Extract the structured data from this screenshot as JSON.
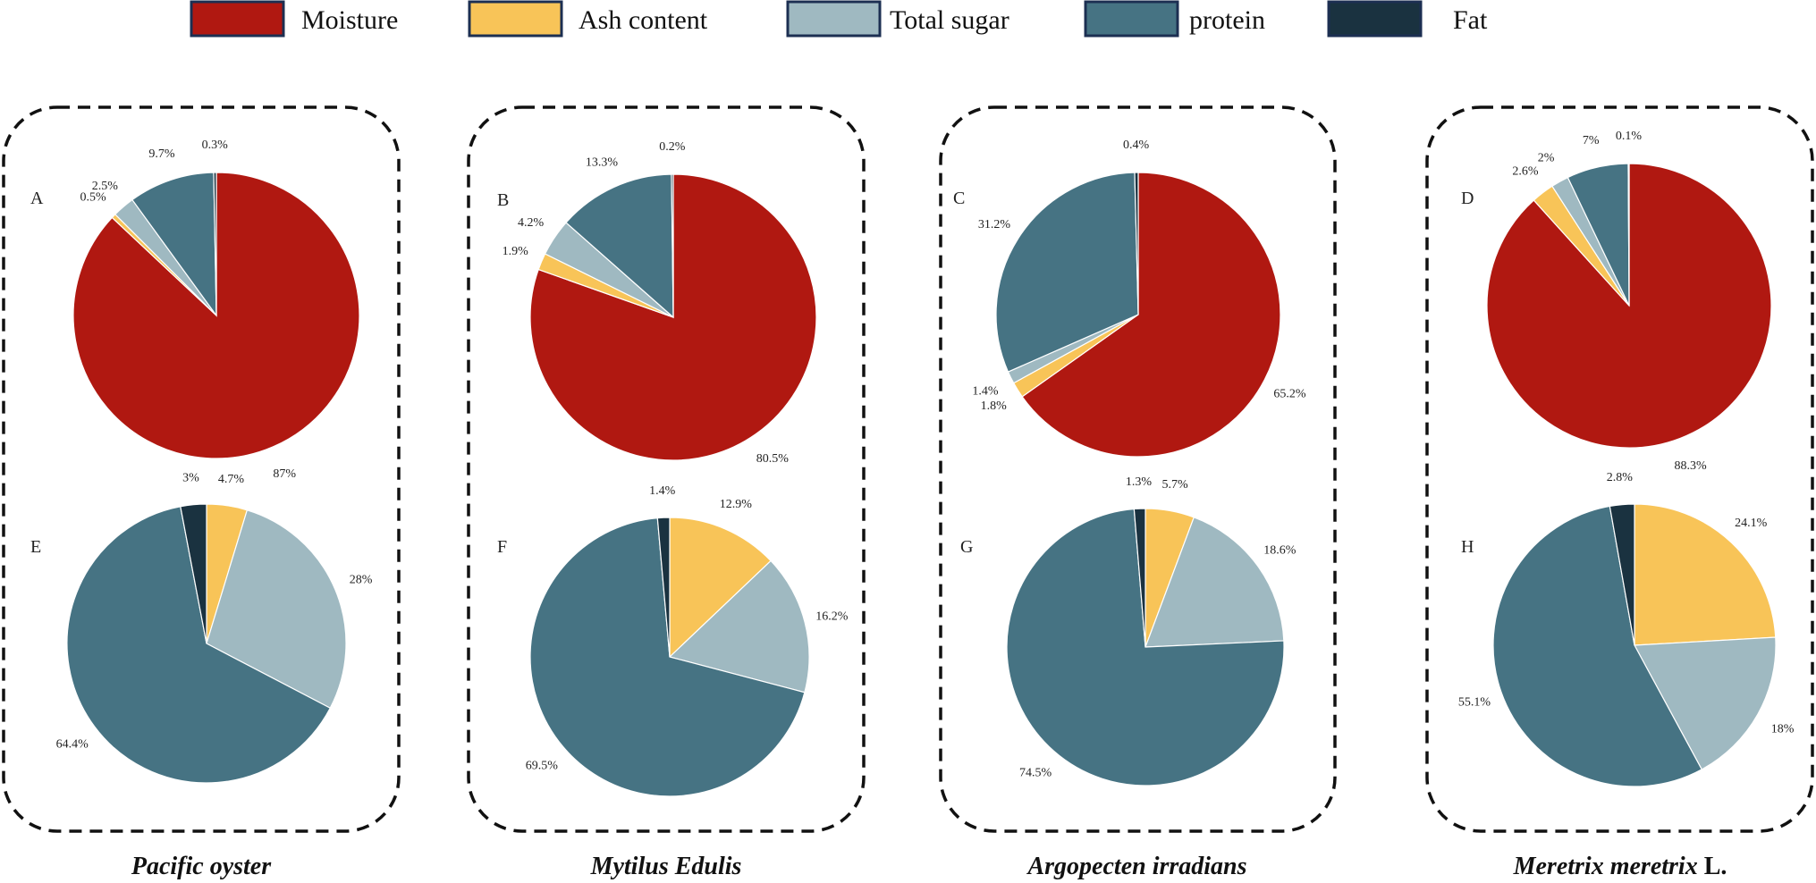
{
  "chart_data": [
    {
      "type": "pie",
      "panel": "A",
      "group": "Pacific oyster",
      "categories": [
        "Moisture",
        "Ash content",
        "Total sugar",
        "protein",
        "Fat"
      ],
      "values": [
        87,
        0.5,
        2.5,
        9.7,
        0.3
      ],
      "labels": [
        "87%",
        "0.5%",
        "2.5%",
        "9.7%",
        "0.3%"
      ]
    },
    {
      "type": "pie",
      "panel": "B",
      "group": "Mytilus Edulis",
      "categories": [
        "Moisture",
        "Ash content",
        "Total sugar",
        "protein",
        "Fat"
      ],
      "values": [
        80.5,
        1.9,
        4.2,
        13.3,
        0.2
      ],
      "labels": [
        "80.5%",
        "1.9%",
        "4.2%",
        "13.3%",
        "0.2%"
      ]
    },
    {
      "type": "pie",
      "panel": "C",
      "group": "Argopecten irradians",
      "categories": [
        "Moisture",
        "Ash content",
        "Total sugar",
        "protein",
        "Fat"
      ],
      "values": [
        65.2,
        1.8,
        1.4,
        31.2,
        0.4
      ],
      "labels": [
        "65.2%",
        "1.8%",
        "1.4%",
        "31.2%",
        "0.4%"
      ]
    },
    {
      "type": "pie",
      "panel": "D",
      "group": "Meretrix meretrix L.",
      "categories": [
        "Moisture",
        "Ash content",
        "Total sugar",
        "protein",
        "Fat"
      ],
      "values": [
        88.3,
        2.6,
        2,
        7,
        0.1
      ],
      "labels": [
        "88.3%",
        "2.6%",
        "2%",
        "7%",
        "0.1%"
      ]
    },
    {
      "type": "pie",
      "panel": "E",
      "group": "Pacific oyster",
      "categories": [
        "Ash content",
        "Total sugar",
        "protein",
        "Fat"
      ],
      "values": [
        4.7,
        28,
        64.4,
        3
      ],
      "labels": [
        "4.7%",
        "28%",
        "64.4%",
        "3%"
      ]
    },
    {
      "type": "pie",
      "panel": "F",
      "group": "Mytilus Edulis",
      "categories": [
        "Ash content",
        "Total sugar",
        "protein",
        "Fat"
      ],
      "values": [
        12.9,
        16.2,
        69.5,
        1.4
      ],
      "labels": [
        "12.9%",
        "16.2%",
        "69.5%",
        "1.4%"
      ]
    },
    {
      "type": "pie",
      "panel": "G",
      "group": "Argopecten irradians",
      "categories": [
        "Ash content",
        "Total sugar",
        "protein",
        "Fat"
      ],
      "values": [
        5.7,
        18.6,
        74.5,
        1.3
      ],
      "labels": [
        "5.7%",
        "18.6%",
        "74.5%",
        "1.3%"
      ]
    },
    {
      "type": "pie",
      "panel": "H",
      "group": "Meretrix meretrix L.",
      "categories": [
        "Ash content",
        "Total sugar",
        "protein",
        "Fat"
      ],
      "values": [
        24.1,
        18,
        55.1,
        2.8
      ],
      "labels": [
        "24.1%",
        "18%",
        "55.1%",
        "2.8%"
      ]
    }
  ],
  "legend": {
    "placement": "top",
    "items": [
      {
        "label": "Moisture",
        "color": "#B01811"
      },
      {
        "label": "Ash content",
        "color": "#F8C458"
      },
      {
        "label": "Total sugar",
        "color": "#9FB9C1"
      },
      {
        "label": "protein",
        "color": "#467383"
      },
      {
        "label": "Fat",
        "color": "#1A3240"
      }
    ]
  },
  "groups": [
    {
      "title": "Pacific oyster",
      "suffix": ""
    },
    {
      "title": "Mytilus Edulis",
      "suffix": ""
    },
    {
      "title": "Argopecten irradians",
      "suffix": ""
    },
    {
      "title": "Meretrix meretrix",
      "suffix": " L."
    }
  ]
}
